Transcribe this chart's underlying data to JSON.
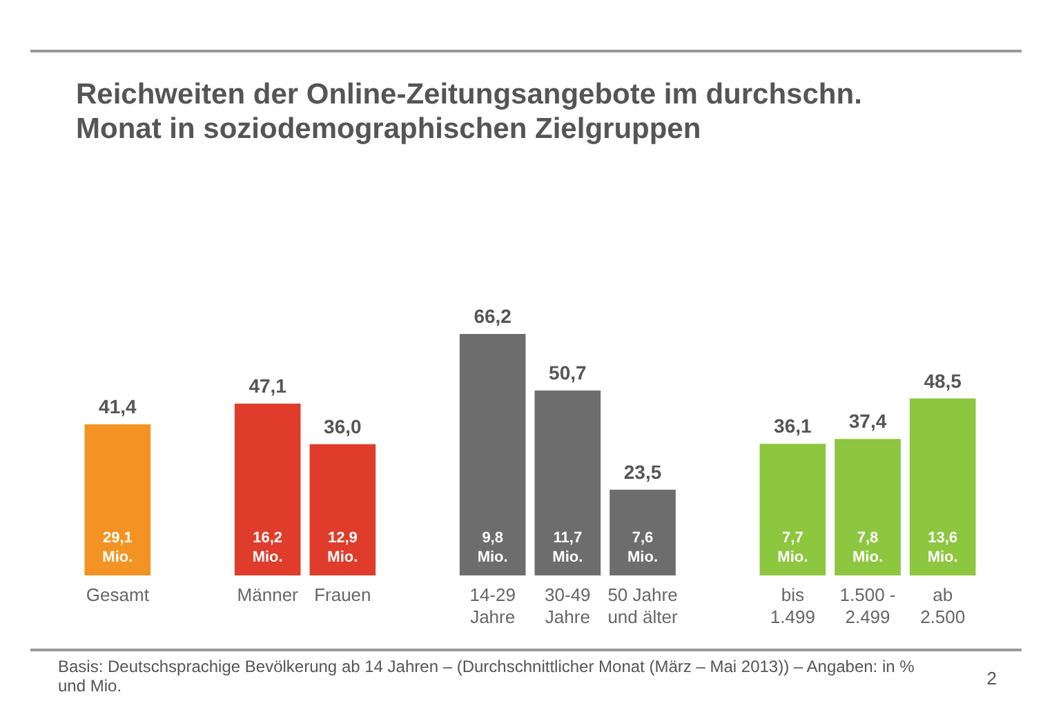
{
  "chart_data": {
    "type": "bar",
    "title": "Reichweiten der Online-Zeitungsangebote im durchschn. Monat in soziodemographischen Zielgruppen",
    "categories": [
      "Gesamt",
      null,
      "Männer",
      "Frauen",
      null,
      "14-29\nJahre",
      "30-49\nJahre",
      "50 Jahre\nund älter",
      null,
      "bis\n1.499",
      "1.500 -\n2.499",
      "ab\n2.500"
    ],
    "values": [
      41.4,
      null,
      47.1,
      36.0,
      null,
      66.2,
      50.7,
      23.5,
      null,
      36.1,
      37.4,
      48.5
    ],
    "colors": [
      "#f39323",
      null,
      "#e03c2c",
      "#e03c2c",
      null,
      "#6d6d6d",
      "#6d6d6d",
      "#6d6d6d",
      null,
      "#8dc63f",
      "#8dc63f",
      "#8dc63f"
    ],
    "value_labels": [
      "41,4",
      null,
      "47,1",
      "36,0",
      null,
      "66,2",
      "50,7",
      "23,5",
      null,
      "36,1",
      "37,4",
      "48,5"
    ],
    "annotations": [
      "29,1 Mio.",
      "16,2 Mio.",
      "12,9 Mio.",
      "9,8 Mio.",
      "11,7 Mio.",
      "7,6 Mio.",
      "7,7 Mio.",
      "7,8 Mio.",
      "13,6 Mio.",
      "Basis: Deutschsprachige Bevölkerung ab 14 Jahren – (Durchschnittlicher Monat (März – Mai 2013)) – Angaben: in % und Mio.",
      "2"
    ]
  }
}
